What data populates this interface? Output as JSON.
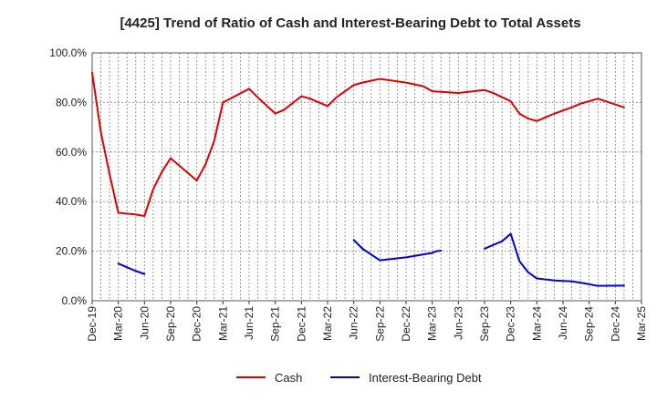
{
  "chart_data": {
    "type": "line",
    "title": "[4425]  Trend of Ratio of Cash and Interest-Bearing Debt to Total Assets",
    "xlabel": "",
    "ylabel": "",
    "ylim": [
      0,
      100
    ],
    "y_ticks": [
      "0.0%",
      "20.0%",
      "40.0%",
      "60.0%",
      "80.0%",
      "100.0%"
    ],
    "y_tick_values": [
      0,
      20,
      40,
      60,
      80,
      100
    ],
    "x_tick_labels": [
      "Dec-19",
      "Mar-20",
      "Jun-20",
      "Sep-20",
      "Dec-20",
      "Mar-21",
      "Jun-21",
      "Sep-21",
      "Dec-21",
      "Mar-22",
      "Jun-22",
      "Sep-22",
      "Dec-22",
      "Mar-23",
      "Jun-23",
      "Sep-23",
      "Dec-23",
      "Mar-24",
      "Jun-24",
      "Sep-24",
      "Dec-24",
      "Mar-25"
    ],
    "x_range_months": [
      0,
      63
    ],
    "grid": true,
    "legend_position": "bottom",
    "series": [
      {
        "name": "Cash",
        "color": "#e00000",
        "points": [
          [
            0,
            92.0
          ],
          [
            1,
            68.0
          ],
          [
            2,
            51.0
          ],
          [
            3,
            35.5
          ],
          [
            5,
            34.8
          ],
          [
            6,
            34.2
          ],
          [
            7,
            45.0
          ],
          [
            8,
            52.0
          ],
          [
            9,
            57.5
          ],
          [
            12,
            48.5
          ],
          [
            13,
            55.0
          ],
          [
            14,
            64.5
          ],
          [
            15,
            80.0
          ],
          [
            16,
            81.8
          ],
          [
            18,
            85.5
          ],
          [
            19,
            82.0
          ],
          [
            21,
            75.5
          ],
          [
            22,
            77.0
          ],
          [
            24,
            82.5
          ],
          [
            25,
            81.5
          ],
          [
            27,
            78.5
          ],
          [
            28,
            82.0
          ],
          [
            30,
            87.0
          ],
          [
            31,
            88.0
          ],
          [
            33,
            89.5
          ],
          [
            36,
            88.0
          ],
          [
            38,
            86.5
          ],
          [
            39,
            84.5
          ],
          [
            42,
            83.8
          ],
          [
            45,
            85.0
          ],
          [
            46,
            83.8
          ],
          [
            48,
            80.5
          ],
          [
            49,
            75.5
          ],
          [
            50,
            73.5
          ],
          [
            51,
            72.5
          ],
          [
            53,
            75.5
          ],
          [
            55,
            78.0
          ],
          [
            56,
            79.5
          ],
          [
            58,
            81.5
          ],
          [
            61,
            78.0
          ]
        ]
      },
      {
        "name": "Interest-Bearing Debt",
        "color": "#0000dd",
        "segments": [
          [
            [
              3,
              15.0
            ],
            [
              4,
              13.5
            ],
            [
              5,
              12.0
            ],
            [
              6,
              10.8
            ]
          ],
          [
            [
              30,
              24.5
            ],
            [
              31,
              21.0
            ],
            [
              33,
              16.3
            ],
            [
              36,
              17.5
            ],
            [
              39,
              19.3
            ],
            [
              39.5,
              20.0
            ],
            [
              40,
              20.2
            ]
          ],
          [
            [
              45,
              21.0
            ],
            [
              47,
              24.0
            ],
            [
              48,
              27.0
            ],
            [
              49,
              16.0
            ],
            [
              50,
              11.5
            ],
            [
              51,
              9.0
            ],
            [
              53,
              8.2
            ],
            [
              55,
              7.8
            ],
            [
              56,
              7.3
            ],
            [
              58,
              6.0
            ],
            [
              61,
              6.1
            ]
          ]
        ]
      }
    ]
  }
}
